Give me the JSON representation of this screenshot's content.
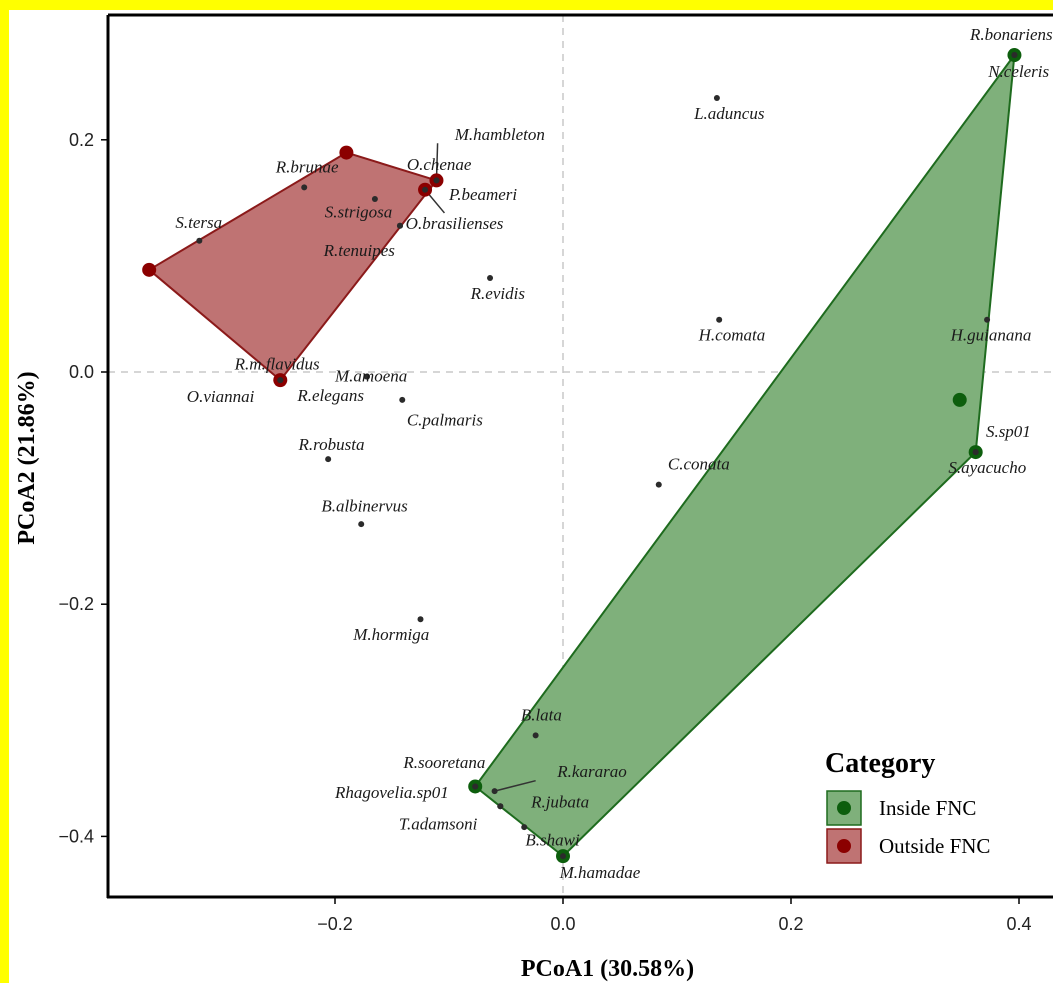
{
  "chart_data": {
    "type": "scatter",
    "xlabel": "PCoA1 (30.58%)",
    "ylabel": "PCoA2 (21.86%)",
    "xlim": [
      -0.395,
      0.43
    ],
    "ylim": [
      -0.45,
      0.3
    ],
    "xticks": [
      -0.2,
      0.0,
      0.2,
      0.4
    ],
    "yticks": [
      -0.4,
      -0.2,
      0.0,
      0.2
    ],
    "xtick_labels": [
      "−0.2",
      "0.0",
      "0.2",
      "0.4"
    ],
    "ytick_labels": [
      "−0.4",
      "−0.2",
      "0.0",
      "0.2"
    ],
    "reference_lines": {
      "x": 0.0,
      "y": 0.0,
      "style": "dashed"
    },
    "legend": {
      "title": "Category",
      "placement": "bottom-right",
      "entries": [
        {
          "label": "Inside FNC",
          "fill": "#7fb07b",
          "stroke": "#1e6b1e",
          "dot": "#0d5e0d"
        },
        {
          "label": "Outside FNC",
          "fill": "#bf7373",
          "stroke": "#8b1a1a",
          "dot": "#8b0000"
        }
      ]
    },
    "hulls": [
      {
        "category": "Inside FNC",
        "fill": "#7fb07b",
        "stroke": "#1e6b1e",
        "vertices": [
          [
            0.396,
            0.273
          ],
          [
            0.362,
            -0.069
          ],
          [
            0.0,
            -0.417
          ],
          [
            -0.077,
            -0.357
          ]
        ]
      },
      {
        "category": "Outside FNC",
        "fill": "#bf7373",
        "stroke": "#8b1a1a",
        "vertices": [
          [
            -0.363,
            0.088
          ],
          [
            -0.19,
            0.189
          ],
          [
            -0.111,
            0.165
          ],
          [
            -0.248,
            -0.007
          ]
        ]
      }
    ],
    "category_points": [
      {
        "category": "Inside FNC",
        "x": 0.396,
        "y": 0.273
      },
      {
        "category": "Inside FNC",
        "x": 0.348,
        "y": -0.024
      },
      {
        "category": "Inside FNC",
        "x": 0.362,
        "y": -0.069
      },
      {
        "category": "Inside FNC",
        "x": 0.0,
        "y": -0.417
      },
      {
        "category": "Inside FNC",
        "x": -0.077,
        "y": -0.357
      },
      {
        "category": "Outside FNC",
        "x": -0.363,
        "y": 0.088
      },
      {
        "category": "Outside FNC",
        "x": -0.19,
        "y": 0.189
      },
      {
        "category": "Outside FNC",
        "x": -0.111,
        "y": 0.165
      },
      {
        "category": "Outside FNC",
        "x": -0.121,
        "y": 0.157
      },
      {
        "category": "Outside FNC",
        "x": -0.248,
        "y": -0.007
      }
    ],
    "points": [
      {
        "label": "R.bonariensis",
        "x": 0.396,
        "y": 0.273,
        "lx": 0.357,
        "ly": 0.286
      },
      {
        "label": "N.celeris",
        "x": 0.396,
        "y": 0.273,
        "lx": 0.373,
        "ly": 0.254
      },
      {
        "label": "L.aduncus",
        "x": 0.135,
        "y": 0.236,
        "lx": 0.115,
        "ly": 0.218
      },
      {
        "label": "H.comata",
        "x": 0.137,
        "y": 0.045,
        "lx": 0.119,
        "ly": 0.027
      },
      {
        "label": "H.guianana",
        "x": 0.372,
        "y": 0.045,
        "lx": 0.34,
        "ly": 0.027
      },
      {
        "label": "S.sp01",
        "x": 0.362,
        "y": -0.069,
        "lx": 0.371,
        "ly": -0.056
      },
      {
        "label": "S.ayacucho",
        "x": 0.362,
        "y": -0.069,
        "lx": 0.338,
        "ly": -0.087
      },
      {
        "label": "C.conata",
        "x": 0.084,
        "y": -0.097,
        "lx": 0.092,
        "ly": -0.084
      },
      {
        "label": "B.lata",
        "x": -0.024,
        "y": -0.313,
        "lx": -0.037,
        "ly": -0.3
      },
      {
        "label": "R.kararao",
        "x": -0.06,
        "y": -0.361,
        "lx": -0.005,
        "ly": -0.349
      },
      {
        "label": "R.sooretana",
        "x": -0.077,
        "y": -0.357,
        "lx": -0.14,
        "ly": -0.341
      },
      {
        "label": "Rhagovelia.sp01",
        "x": -0.077,
        "y": -0.357,
        "lx": -0.2,
        "ly": -0.367
      },
      {
        "label": "R.jubata",
        "x": -0.055,
        "y": -0.374,
        "lx": -0.028,
        "ly": -0.375
      },
      {
        "label": "T.adamsoni",
        "x": -0.055,
        "y": -0.374,
        "lx": -0.144,
        "ly": -0.394
      },
      {
        "label": "B.shawi",
        "x": -0.034,
        "y": -0.392,
        "lx": -0.033,
        "ly": -0.408
      },
      {
        "label": "M.hamadae",
        "x": 0.0,
        "y": -0.417,
        "lx": -0.003,
        "ly": -0.436
      },
      {
        "label": "S.tersa",
        "x": -0.319,
        "y": 0.113,
        "lx": -0.34,
        "ly": 0.124
      },
      {
        "label": "R.brunae",
        "x": -0.227,
        "y": 0.159,
        "lx": -0.252,
        "ly": 0.172
      },
      {
        "label": "M.hambleton",
        "x": -0.111,
        "y": 0.165,
        "lx": -0.095,
        "ly": 0.2
      },
      {
        "label": "O.chenae",
        "x": -0.111,
        "y": 0.165,
        "lx": -0.137,
        "ly": 0.174
      },
      {
        "label": "P.beameri",
        "x": -0.121,
        "y": 0.157,
        "lx": -0.1,
        "ly": 0.148
      },
      {
        "label": "S.strigosa",
        "x": -0.165,
        "y": 0.149,
        "lx": -0.209,
        "ly": 0.133
      },
      {
        "label": "O.brasilienses",
        "x": -0.143,
        "y": 0.126,
        "lx": -0.138,
        "ly": 0.123
      },
      {
        "label": "R.tenuipes",
        "x": -0.143,
        "y": 0.126,
        "lx": -0.21,
        "ly": 0.1
      },
      {
        "label": "R.evidis",
        "x": -0.064,
        "y": 0.081,
        "lx": -0.081,
        "ly": 0.063
      },
      {
        "label": "R.m.flavidus",
        "x": -0.248,
        "y": -0.007,
        "lx": -0.288,
        "ly": 0.002
      },
      {
        "label": "O.viannai",
        "x": -0.248,
        "y": -0.007,
        "lx": -0.33,
        "ly": -0.026
      },
      {
        "label": "M.amoena",
        "x": -0.172,
        "y": -0.004,
        "lx": -0.2,
        "ly": -0.008
      },
      {
        "label": "R.elegans",
        "x": -0.172,
        "y": -0.004,
        "lx": -0.233,
        "ly": -0.025
      },
      {
        "label": "C.palmaris",
        "x": -0.141,
        "y": -0.024,
        "lx": -0.137,
        "ly": -0.046
      },
      {
        "label": "R.robusta",
        "x": -0.206,
        "y": -0.075,
        "lx": -0.232,
        "ly": -0.067
      },
      {
        "label": "B.albinervus",
        "x": -0.177,
        "y": -0.131,
        "lx": -0.212,
        "ly": -0.12
      },
      {
        "label": "M.hormiga",
        "x": -0.125,
        "y": -0.213,
        "lx": -0.184,
        "ly": -0.231
      }
    ],
    "leader_lines": [
      {
        "from": [
          -0.111,
          0.165
        ],
        "to": [
          -0.11,
          0.197
        ]
      },
      {
        "from": [
          -0.121,
          0.157
        ],
        "to": [
          -0.104,
          0.137
        ]
      },
      {
        "from": [
          -0.06,
          -0.361
        ],
        "to": [
          -0.024,
          -0.352
        ]
      }
    ]
  }
}
